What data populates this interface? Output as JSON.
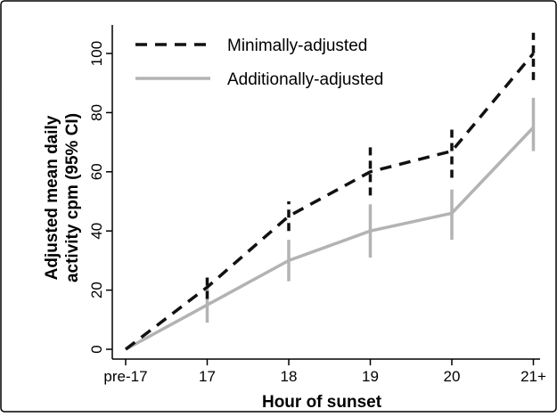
{
  "chart_data": {
    "type": "line",
    "xlabel": "Hour of sunset",
    "ylabel_lines": [
      "Adjusted mean daily",
      "activity cpm (95% CI)"
    ],
    "categories": [
      "pre-17",
      "17",
      "18",
      "19",
      "20",
      "21+"
    ],
    "ylim": [
      0,
      110
    ],
    "yticks": [
      0,
      20,
      40,
      60,
      80,
      100
    ],
    "grid": false,
    "legend_position": "top-left",
    "series": [
      {
        "name": "Minimally-adjusted",
        "style": "dashed",
        "color": "#111111",
        "values": [
          0,
          21,
          45,
          60,
          67,
          100
        ],
        "ci_low": [
          0,
          17,
          40,
          52,
          58,
          91
        ],
        "ci_high": [
          0,
          26,
          50,
          69,
          75,
          107
        ]
      },
      {
        "name": "Additionally-adjusted",
        "style": "solid",
        "color": "#b3b3b3",
        "values": [
          0,
          15,
          30,
          40,
          46,
          75
        ],
        "ci_low": [
          0,
          9,
          23,
          31,
          37,
          67
        ],
        "ci_high": [
          0,
          21,
          37,
          49,
          54,
          85
        ]
      }
    ]
  }
}
